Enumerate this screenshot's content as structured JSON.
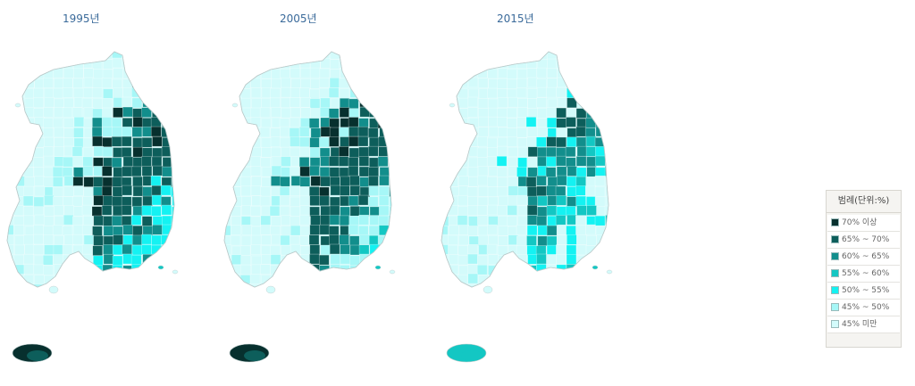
{
  "maps": [
    {
      "year_label": "1995년",
      "profile": [
        3,
        4,
        5,
        3,
        3,
        5,
        6,
        6,
        6,
        7,
        5,
        2,
        1,
        1,
        1,
        1
      ],
      "jeju": [
        7,
        6
      ]
    },
    {
      "year_label": "2005년",
      "profile": [
        2,
        3,
        4,
        2,
        2,
        5,
        6,
        6,
        6,
        7,
        5,
        2,
        1,
        1,
        1,
        1
      ],
      "jeju": [
        7,
        6
      ]
    },
    {
      "year_label": "2015년",
      "profile": [
        1,
        3,
        4,
        1,
        1,
        3,
        4,
        5,
        5,
        6,
        3,
        1,
        1,
        1,
        1,
        1
      ],
      "jeju": [
        4,
        4
      ]
    }
  ],
  "legend": {
    "title": "범례(단위:%)",
    "items": [
      {
        "label": "70% 이상",
        "color": "#07302e"
      },
      {
        "label": "65% ~ 70%",
        "color": "#0d5e5b"
      },
      {
        "label": "60% ~ 65%",
        "color": "#128e8c"
      },
      {
        "label": "55% ~ 60%",
        "color": "#13c7c3"
      },
      {
        "label": "50% ~ 55%",
        "color": "#14f2f2"
      },
      {
        "label": "45% ~ 50%",
        "color": "#a6f7f7"
      },
      {
        "label": "45% 미만",
        "color": "#d3fbfb"
      }
    ]
  }
}
